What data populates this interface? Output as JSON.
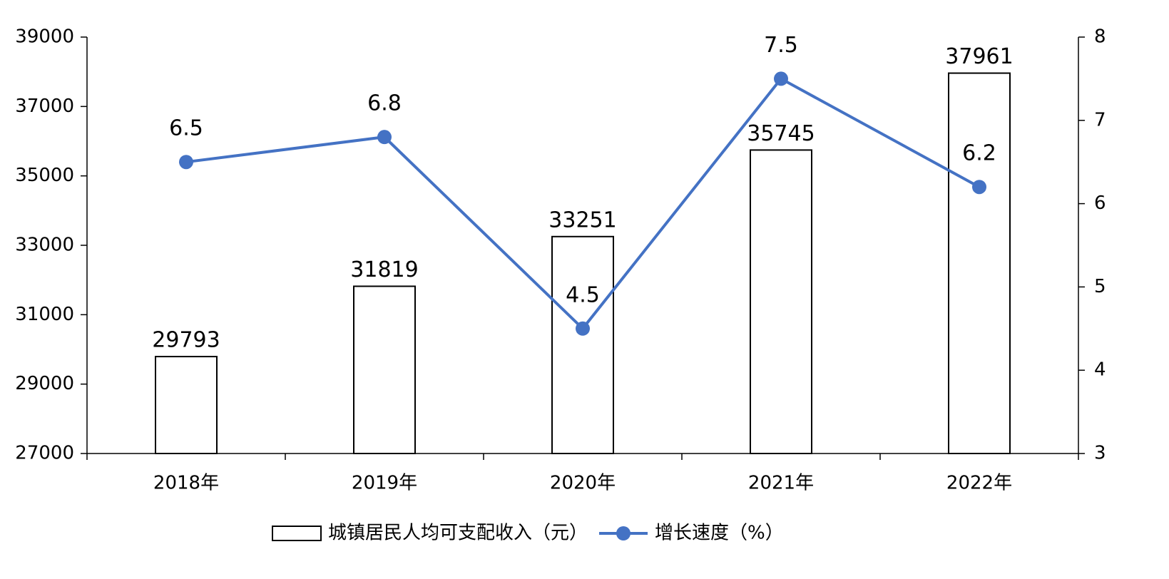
{
  "chart_data": {
    "type": "bar",
    "categories": [
      "2018年",
      "2019年",
      "2020年",
      "2021年",
      "2022年"
    ],
    "series": [
      {
        "name": "城镇居民人均可支配收入（元）",
        "type": "bar",
        "color": "#ffffff",
        "values": [
          29793,
          31819,
          33251,
          35745,
          37961
        ]
      },
      {
        "name": "增长速度（%）",
        "type": "line",
        "axis": "y2",
        "color": "#4472c4",
        "values": [
          6.5,
          6.8,
          4.5,
          7.5,
          6.2
        ]
      }
    ],
    "ylim": [
      27000,
      39000
    ],
    "yticks": [
      27000,
      29000,
      31000,
      33000,
      35000,
      37000,
      39000
    ],
    "y2lim": [
      3,
      8
    ],
    "y2ticks": [
      3,
      4,
      5,
      6,
      7,
      8
    ],
    "legend": "bottom"
  }
}
